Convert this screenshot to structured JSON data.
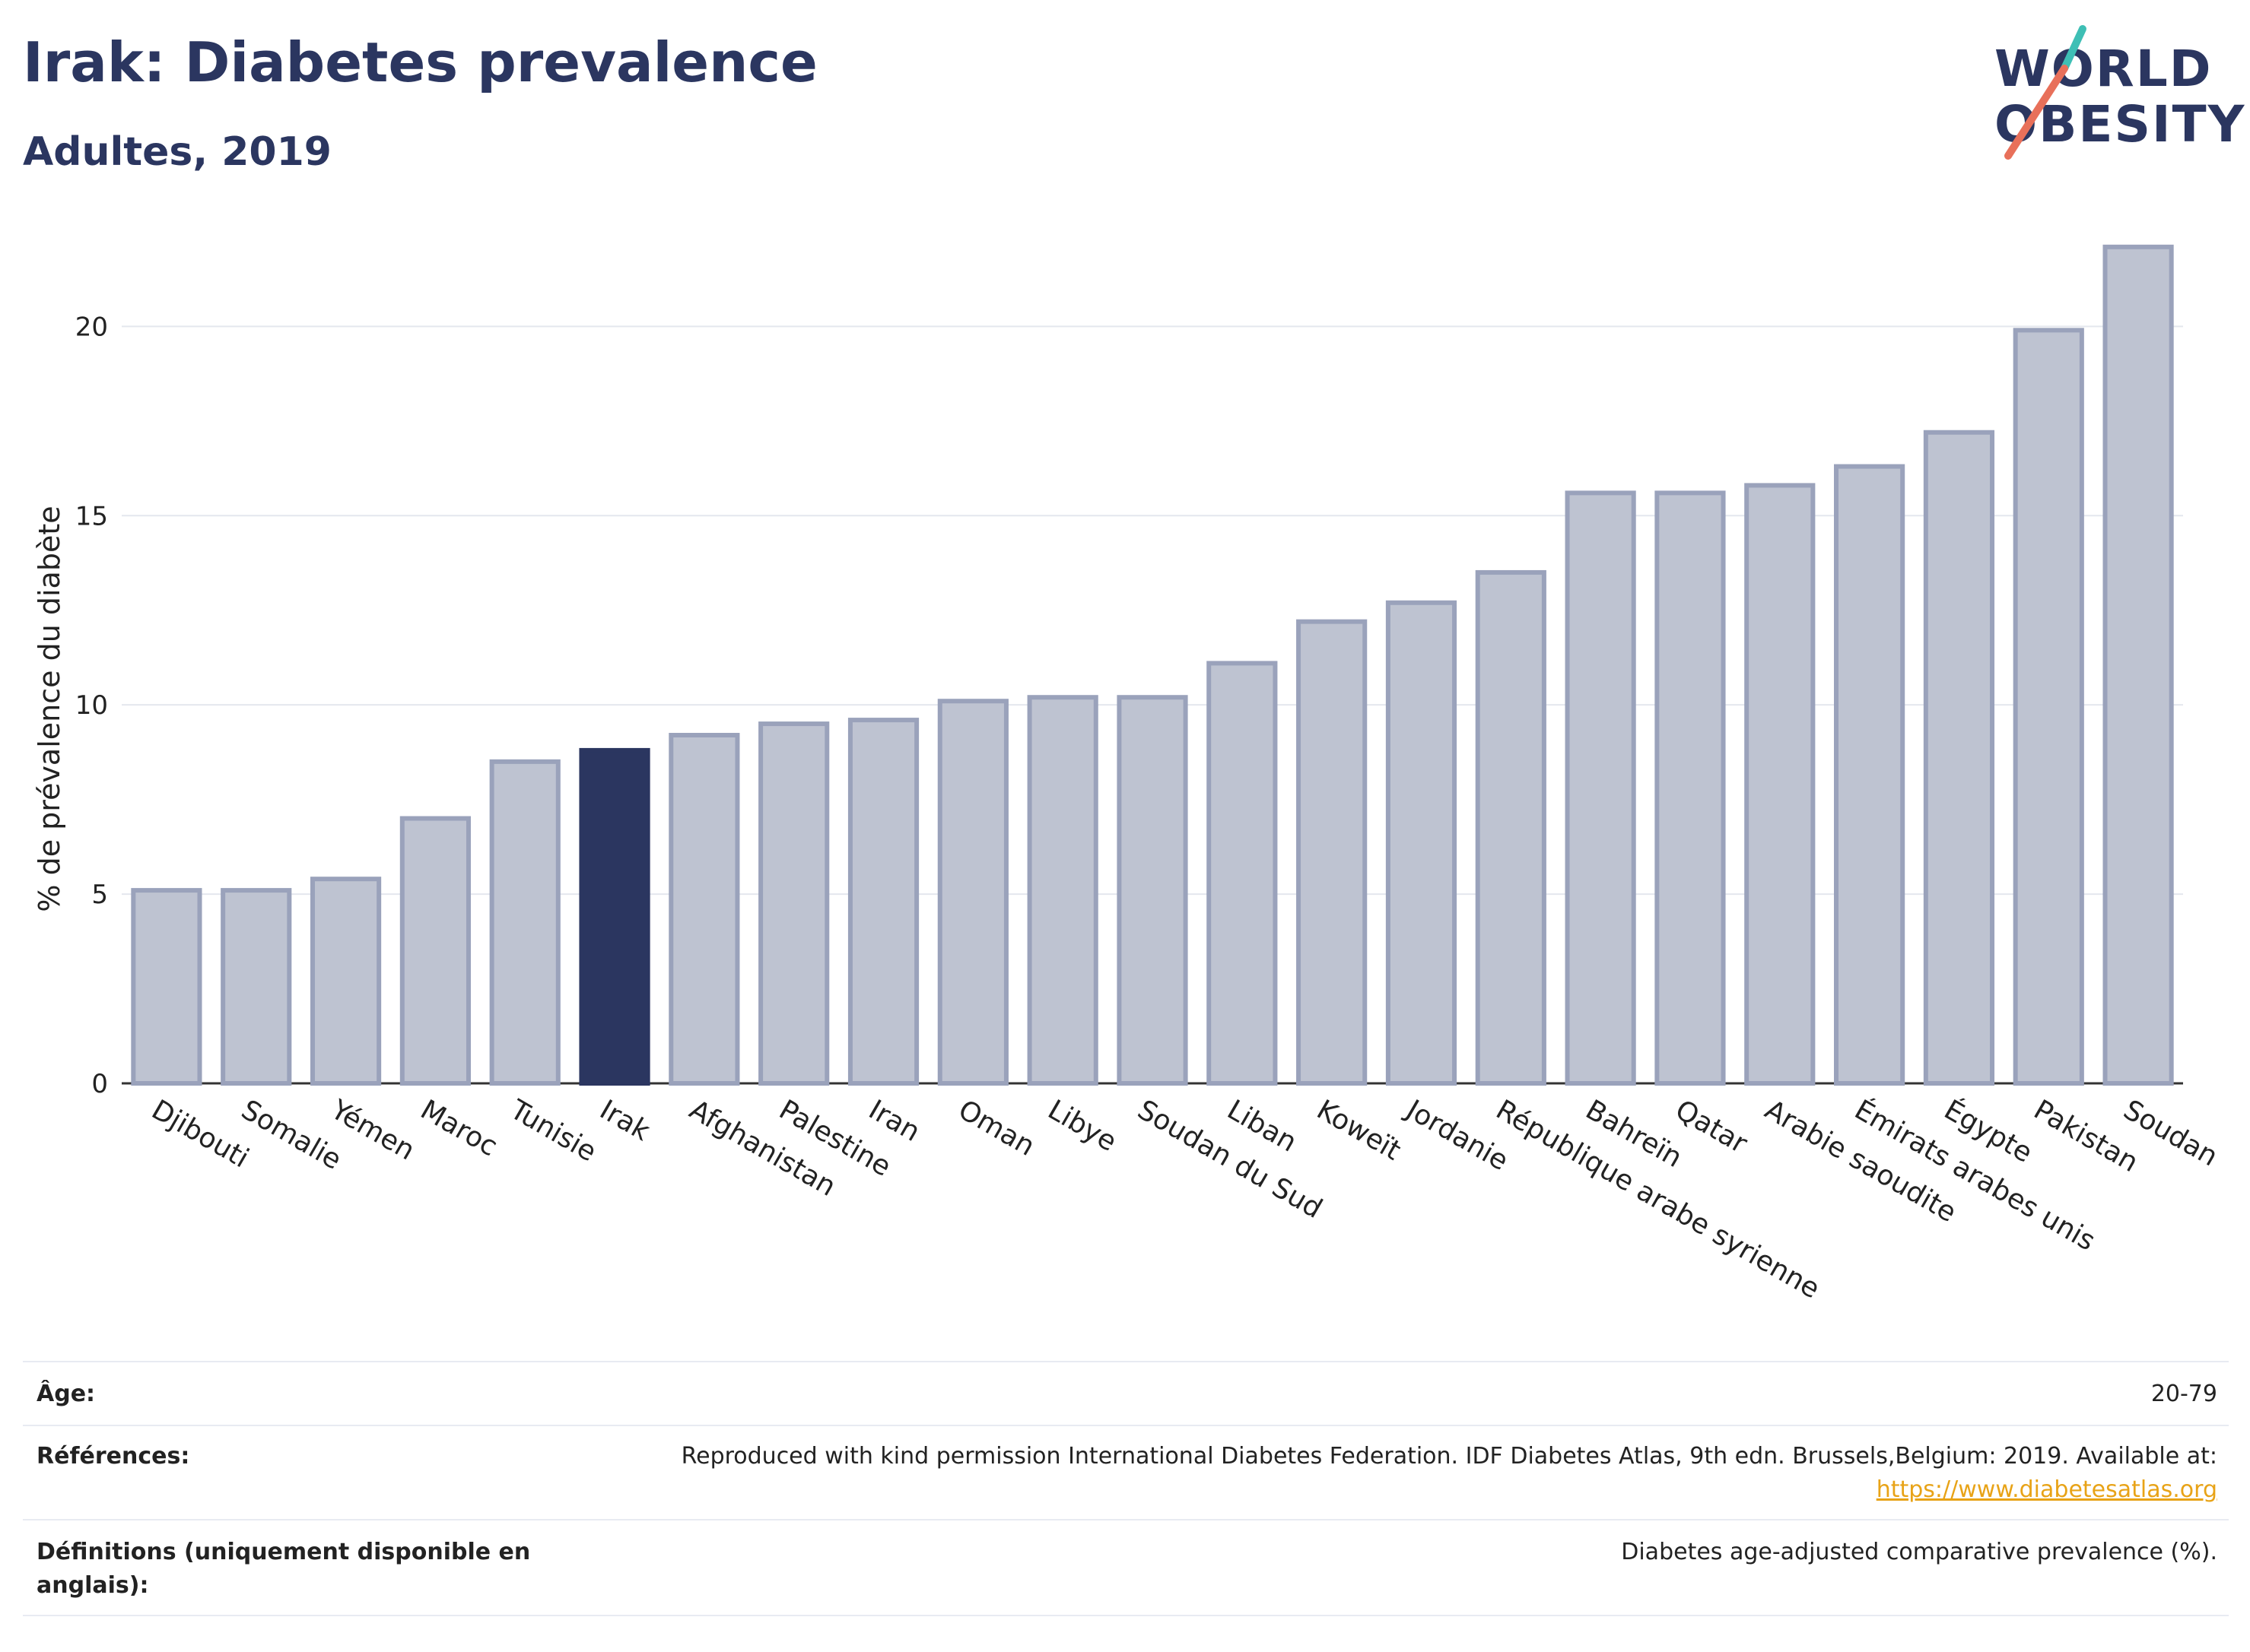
{
  "header": {
    "title": "Irak: Diabetes prevalence",
    "subtitle": "Adultes, 2019"
  },
  "logo": {
    "line1": "WORLD",
    "line2": "OBESITY",
    "accent_teal": "#3ebfb5",
    "accent_coral": "#e8705a"
  },
  "colors": {
    "bar": "#bec3d1",
    "bar_border": "#9aa2bb",
    "highlight": "#2b3660",
    "text": "#2b3660"
  },
  "chart_data": {
    "type": "bar",
    "ylabel": "% de prévalence du diabète",
    "ylim": [
      0,
      23
    ],
    "yticks": [
      0,
      5,
      10,
      15,
      20
    ],
    "grid": true,
    "highlight": "Irak",
    "categories": [
      "Djibouti",
      "Somalie",
      "Yémen",
      "Maroc",
      "Tunisie",
      "Irak",
      "Afghanistan",
      "Palestine",
      "Iran",
      "Oman",
      "Libye",
      "Soudan du Sud",
      "Liban",
      "Koweït",
      "Jordanie",
      "République arabe syrienne",
      "Bahreïn",
      "Qatar",
      "Arabie saoudite",
      "Émirats arabes unis",
      "Égypte",
      "Pakistan",
      "Soudan"
    ],
    "values": [
      5.1,
      5.1,
      5.4,
      7.0,
      8.5,
      8.8,
      9.2,
      9.5,
      9.6,
      10.1,
      10.2,
      10.2,
      11.1,
      12.2,
      12.7,
      13.5,
      15.6,
      15.6,
      15.8,
      16.3,
      17.2,
      19.9,
      22.1
    ]
  },
  "info": {
    "age_label": "Âge:",
    "age_value": "20-79",
    "refs_label": "Références:",
    "refs_value": "Reproduced with kind permission International Diabetes Federation. IDF Diabetes Atlas, 9th edn. Brussels,Belgium: 2019. Available at:",
    "refs_link": "https://www.diabetesatlas.org",
    "defs_label": "Définitions (uniquement disponible en anglais):",
    "defs_value": "Diabetes age-adjusted comparative prevalence (%)."
  }
}
